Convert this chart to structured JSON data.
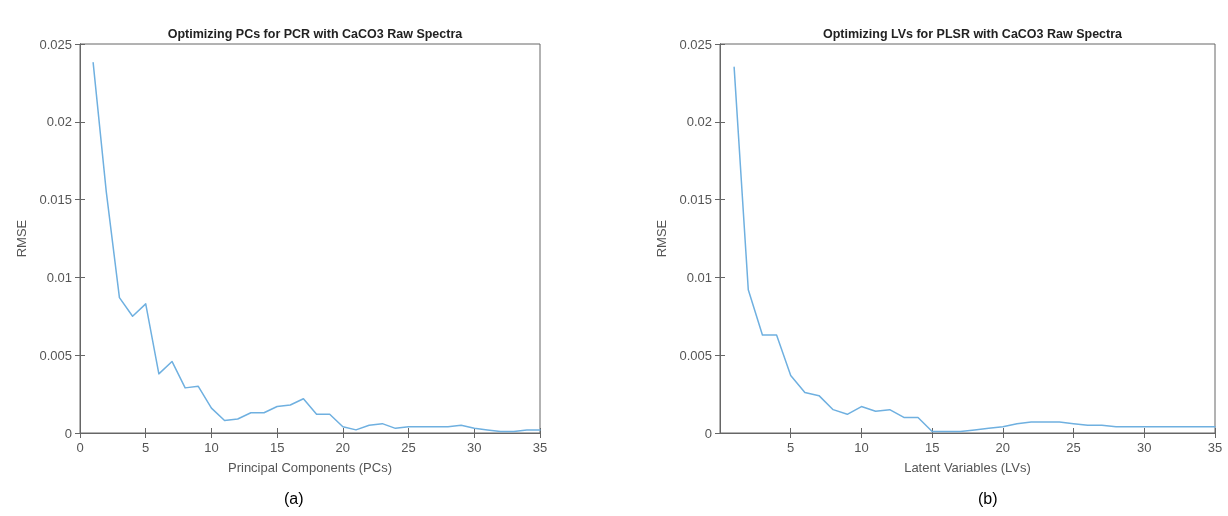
{
  "chart_data": [
    {
      "type": "line",
      "title": "Optimizing PCs for PCR with CaCO3 Raw Spectra",
      "xlabel": "Principal Components (PCs)",
      "ylabel": "RMSE",
      "annotations": [
        "(a)"
      ],
      "x": [
        1,
        2,
        3,
        4,
        5,
        6,
        7,
        8,
        9,
        10,
        11,
        12,
        13,
        14,
        15,
        16,
        17,
        18,
        19,
        20,
        21,
        22,
        23,
        24,
        25,
        26,
        27,
        28,
        29,
        30,
        31,
        32,
        33,
        34,
        35
      ],
      "series": [
        {
          "color": "#6fb0e0",
          "values": [
            0.0238,
            0.0155,
            0.0087,
            0.0075,
            0.0083,
            0.0038,
            0.0046,
            0.0029,
            0.003,
            0.0016,
            0.0008,
            0.0009,
            0.0013,
            0.0013,
            0.0017,
            0.0018,
            0.0022,
            0.0012,
            0.0012,
            0.0004,
            0.0002,
            0.0005,
            0.0006,
            0.0003,
            0.0004,
            0.0004,
            0.0004,
            0.0004,
            0.0005,
            0.0003,
            0.0002,
            0.0001,
            0.0001,
            0.0002,
            0.0002
          ]
        }
      ],
      "xlim": [
        0,
        35
      ],
      "xticks": [
        0,
        5,
        10,
        15,
        20,
        25,
        30,
        35
      ],
      "ylim": [
        0,
        0.025
      ],
      "yticks": [
        0,
        0.005,
        0.01,
        0.015,
        0.02,
        0.025
      ],
      "grid": false,
      "marker": "none",
      "line_style": "solid"
    },
    {
      "type": "line",
      "title": "Optimizing LVs for PLSR with CaCO3 Raw Spectra",
      "xlabel": "Latent Variables (LVs)",
      "ylabel": "RMSE",
      "annotations": [
        "(b)"
      ],
      "x": [
        1,
        2,
        3,
        4,
        5,
        6,
        7,
        8,
        9,
        10,
        11,
        12,
        13,
        14,
        15,
        16,
        17,
        18,
        19,
        20,
        21,
        22,
        23,
        24,
        25,
        26,
        27,
        28,
        29,
        30,
        31,
        32,
        33,
        34,
        35
      ],
      "series": [
        {
          "color": "#6fb0e0",
          "values": [
            0.0235,
            0.0092,
            0.0063,
            0.0063,
            0.0037,
            0.0026,
            0.0024,
            0.0015,
            0.0012,
            0.0017,
            0.0014,
            0.0015,
            0.001,
            0.001,
            0.0001,
            0.0001,
            0.0001,
            0.0002,
            0.0003,
            0.0004,
            0.0006,
            0.0007,
            0.0007,
            0.0007,
            0.0006,
            0.0005,
            0.0005,
            0.0004,
            0.0004,
            0.0004,
            0.0004,
            0.0004,
            0.0004,
            0.0004,
            0.0004
          ]
        }
      ],
      "xlim": [
        0,
        35
      ],
      "xticks": [
        5,
        10,
        15,
        20,
        25,
        30,
        35
      ],
      "ylim": [
        0,
        0.025
      ],
      "yticks": [
        0,
        0.005,
        0.01,
        0.015,
        0.02,
        0.025
      ],
      "grid": false,
      "marker": "none",
      "line_style": "solid"
    }
  ]
}
